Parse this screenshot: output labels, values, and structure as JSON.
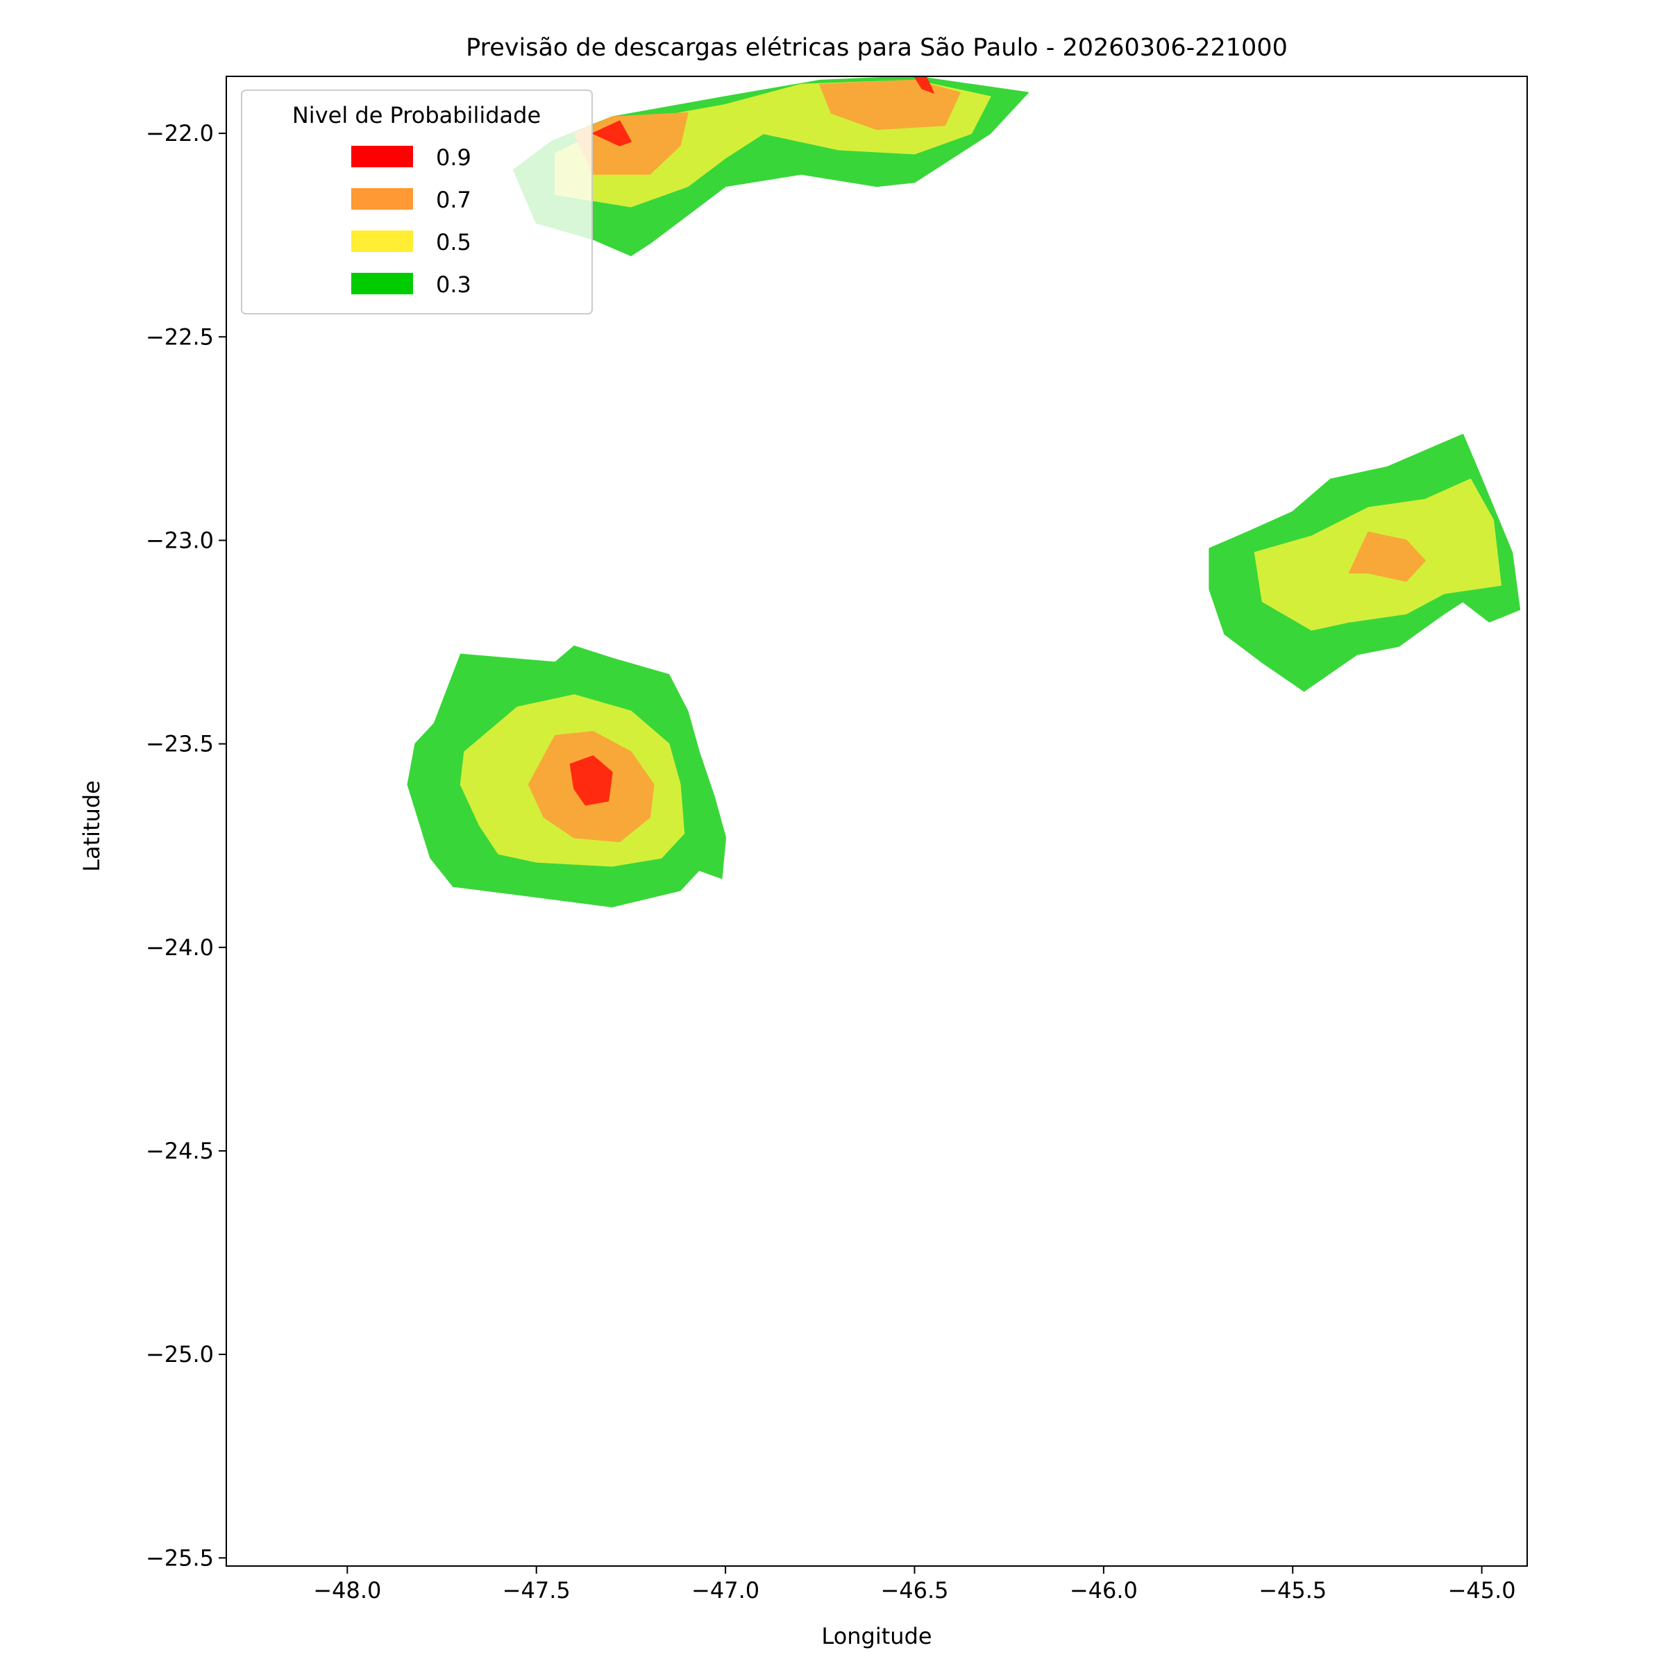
{
  "chart_data": {
    "type": "contour",
    "title": "Previsão de descargas elétricas para São Paulo - 20260306-221000",
    "xlabel": "Longitude",
    "ylabel": "Latitude",
    "xlim": [
      -48.32,
      -44.88
    ],
    "ylim": [
      -25.52,
      -21.86
    ],
    "xticks": [
      -48.0,
      -47.5,
      -47.0,
      -46.5,
      -46.0,
      -45.5,
      -45.0
    ],
    "xtick_labels": [
      "−48.0",
      "−47.5",
      "−47.0",
      "−46.5",
      "−46.0",
      "−45.5",
      "−45.0"
    ],
    "yticks": [
      -22.0,
      -22.5,
      -23.0,
      -23.5,
      -24.0,
      -24.5,
      -25.0,
      -25.5
    ],
    "ytick_labels": [
      "−22.0",
      "−22.5",
      "−23.0",
      "−23.5",
      "−24.0",
      "−24.5",
      "−25.0",
      "−25.5"
    ],
    "grid": false,
    "legend": {
      "title": "Nivel de Probabilidade",
      "placement": "upper-left",
      "entries": [
        {
          "label": "0.9",
          "color": "#ff0000"
        },
        {
          "label": "0.7",
          "color": "#ff9933"
        },
        {
          "label": "0.5",
          "color": "#ffee33"
        },
        {
          "label": "0.3",
          "color": "#00cc00"
        }
      ]
    },
    "level_colors": {
      "0.3": "#39d639",
      "0.5": "#d4ef3a",
      "0.7": "#f8a838",
      "0.9": "#ff2a10"
    },
    "series": [
      {
        "level": "0.3",
        "polygons": [
          [
            [
              -47.7,
              -23.28
            ],
            [
              -47.45,
              -23.3
            ],
            [
              -47.4,
              -23.26
            ],
            [
              -47.3,
              -23.29
            ],
            [
              -47.15,
              -23.33
            ],
            [
              -47.1,
              -23.42
            ],
            [
              -47.07,
              -23.52
            ],
            [
              -47.03,
              -23.63
            ],
            [
              -47.0,
              -23.73
            ],
            [
              -47.01,
              -23.83
            ],
            [
              -47.07,
              -23.81
            ],
            [
              -47.12,
              -23.86
            ],
            [
              -47.3,
              -23.9
            ],
            [
              -47.55,
              -23.87
            ],
            [
              -47.72,
              -23.85
            ],
            [
              -47.78,
              -23.78
            ],
            [
              -47.84,
              -23.6
            ],
            [
              -47.82,
              -23.5
            ],
            [
              -47.77,
              -23.45
            ]
          ],
          [
            [
              -45.72,
              -23.02
            ],
            [
              -45.62,
              -22.98
            ],
            [
              -45.5,
              -22.93
            ],
            [
              -45.4,
              -22.85
            ],
            [
              -45.25,
              -22.82
            ],
            [
              -45.1,
              -22.76
            ],
            [
              -45.05,
              -22.74
            ],
            [
              -45.0,
              -22.85
            ],
            [
              -44.92,
              -23.03
            ],
            [
              -44.9,
              -23.17
            ],
            [
              -44.98,
              -23.2
            ],
            [
              -45.05,
              -23.15
            ],
            [
              -45.1,
              -23.18
            ],
            [
              -45.22,
              -23.26
            ],
            [
              -45.33,
              -23.28
            ],
            [
              -45.47,
              -23.37
            ],
            [
              -45.58,
              -23.3
            ],
            [
              -45.68,
              -23.23
            ],
            [
              -45.72,
              -23.12
            ]
          ],
          [
            [
              -47.56,
              -22.09
            ],
            [
              -47.46,
              -22.02
            ],
            [
              -47.3,
              -21.96
            ],
            [
              -47.0,
              -21.91
            ],
            [
              -46.75,
              -21.87
            ],
            [
              -46.5,
              -21.86
            ],
            [
              -46.2,
              -21.9
            ],
            [
              -46.3,
              -22.0
            ],
            [
              -46.5,
              -22.12
            ],
            [
              -46.6,
              -22.13
            ],
            [
              -46.8,
              -22.1
            ],
            [
              -47.0,
              -22.13
            ],
            [
              -47.1,
              -22.2
            ],
            [
              -47.2,
              -22.27
            ],
            [
              -47.25,
              -22.3
            ],
            [
              -47.35,
              -22.26
            ],
            [
              -47.5,
              -22.22
            ]
          ]
        ]
      },
      {
        "level": "0.5",
        "polygons": [
          [
            [
              -47.55,
              -23.41
            ],
            [
              -47.4,
              -23.38
            ],
            [
              -47.25,
              -23.42
            ],
            [
              -47.15,
              -23.5
            ],
            [
              -47.12,
              -23.6
            ],
            [
              -47.11,
              -23.72
            ],
            [
              -47.17,
              -23.78
            ],
            [
              -47.3,
              -23.8
            ],
            [
              -47.5,
              -23.79
            ],
            [
              -47.6,
              -23.77
            ],
            [
              -47.65,
              -23.7
            ],
            [
              -47.7,
              -23.6
            ],
            [
              -47.69,
              -23.52
            ]
          ],
          [
            [
              -45.6,
              -23.03
            ],
            [
              -45.45,
              -22.99
            ],
            [
              -45.3,
              -22.92
            ],
            [
              -45.15,
              -22.9
            ],
            [
              -45.03,
              -22.85
            ],
            [
              -44.97,
              -22.95
            ],
            [
              -44.95,
              -23.11
            ],
            [
              -45.1,
              -23.13
            ],
            [
              -45.2,
              -23.18
            ],
            [
              -45.35,
              -23.2
            ],
            [
              -45.45,
              -23.22
            ],
            [
              -45.58,
              -23.15
            ]
          ],
          [
            [
              -47.45,
              -22.05
            ],
            [
              -47.3,
              -21.98
            ],
            [
              -47.0,
              -21.93
            ],
            [
              -46.8,
              -21.88
            ],
            [
              -46.5,
              -21.87
            ],
            [
              -46.3,
              -21.91
            ],
            [
              -46.35,
              -22.0
            ],
            [
              -46.5,
              -22.05
            ],
            [
              -46.7,
              -22.04
            ],
            [
              -46.9,
              -22.0
            ],
            [
              -47.0,
              -22.06
            ],
            [
              -47.1,
              -22.13
            ],
            [
              -47.25,
              -22.18
            ],
            [
              -47.45,
              -22.15
            ]
          ]
        ]
      },
      {
        "level": "0.7",
        "polygons": [
          [
            [
              -47.45,
              -23.48
            ],
            [
              -47.35,
              -23.47
            ],
            [
              -47.25,
              -23.52
            ],
            [
              -47.19,
              -23.6
            ],
            [
              -47.2,
              -23.68
            ],
            [
              -47.28,
              -23.74
            ],
            [
              -47.4,
              -23.73
            ],
            [
              -47.48,
              -23.68
            ],
            [
              -47.52,
              -23.6
            ]
          ],
          [
            [
              -45.35,
              -23.08
            ],
            [
              -45.3,
              -22.98
            ],
            [
              -45.2,
              -23.0
            ],
            [
              -45.15,
              -23.05
            ],
            [
              -45.2,
              -23.1
            ],
            [
              -45.3,
              -23.08
            ]
          ],
          [
            [
              -47.4,
              -22.0
            ],
            [
              -47.3,
              -21.96
            ],
            [
              -47.1,
              -21.95
            ],
            [
              -47.12,
              -22.03
            ],
            [
              -47.2,
              -22.1
            ],
            [
              -47.35,
              -22.1
            ]
          ],
          [
            [
              -46.75,
              -21.88
            ],
            [
              -46.5,
              -21.87
            ],
            [
              -46.38,
              -21.9
            ],
            [
              -46.42,
              -21.98
            ],
            [
              -46.6,
              -21.99
            ],
            [
              -46.72,
              -21.95
            ]
          ]
        ]
      },
      {
        "level": "0.9",
        "polygons": [
          [
            [
              -47.41,
              -23.55
            ],
            [
              -47.35,
              -23.53
            ],
            [
              -47.3,
              -23.57
            ],
            [
              -47.31,
              -23.64
            ],
            [
              -47.37,
              -23.65
            ],
            [
              -47.4,
              -23.61
            ]
          ],
          [
            [
              -47.35,
              -22.0
            ],
            [
              -47.28,
              -21.97
            ],
            [
              -47.25,
              -22.02
            ],
            [
              -47.28,
              -22.03
            ]
          ],
          [
            [
              -46.5,
              -21.86
            ],
            [
              -46.47,
              -21.86
            ],
            [
              -46.45,
              -21.9
            ],
            [
              -46.48,
              -21.89
            ]
          ]
        ]
      }
    ]
  }
}
